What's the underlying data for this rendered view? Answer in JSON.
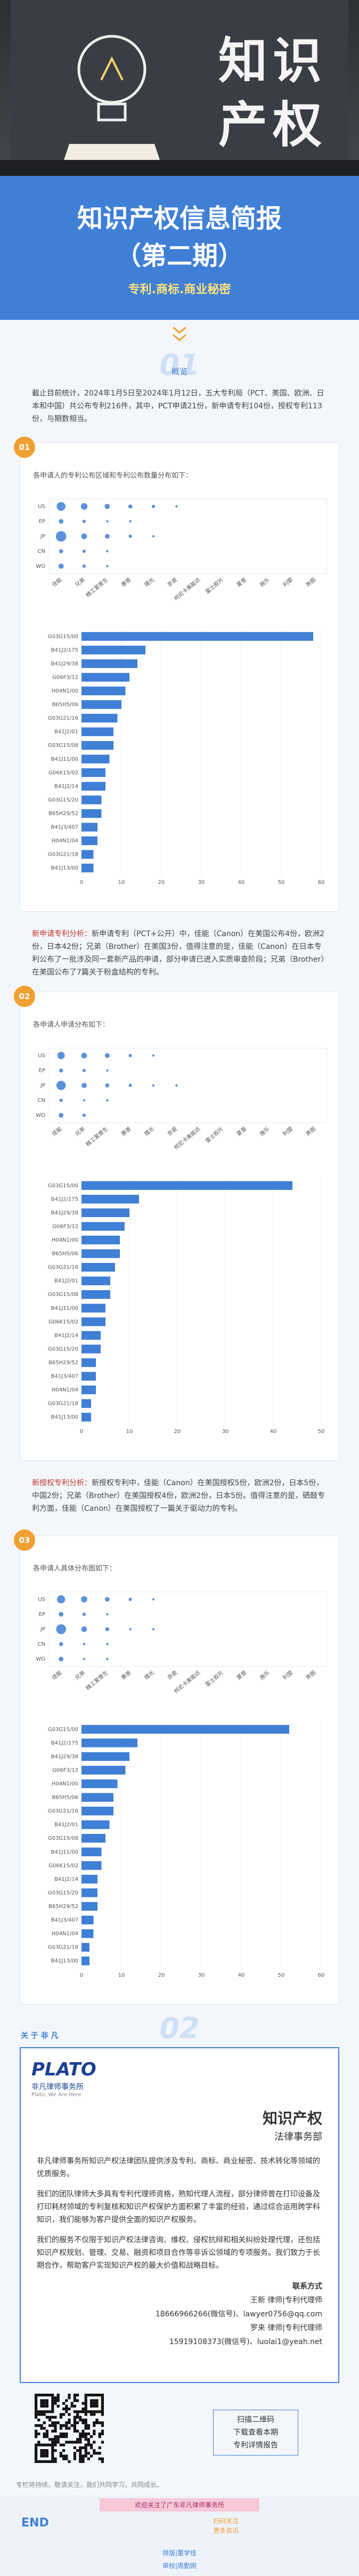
{
  "header": {
    "title_line1": "知识",
    "title_line2": "产权"
  },
  "banner": {
    "title": "知识产权信息简报",
    "issue": "（第二期）",
    "subtitle": "专利.商标.商业秘密"
  },
  "section1": {
    "number": "01",
    "label": "概览"
  },
  "intro": "截止目前统计，2024年1月5日至2024年1月12日，五大专利局（PCT、美国、欧洲、日本和中国）共公布专利216件，其中，PCT申请21份，新申请专利104份，授权专利113份，与期数相当。",
  "cards": [
    {
      "badge": "01",
      "caption": "各申请人的专利公布区域和专利公布数量分布如下："
    },
    {
      "badge": "02",
      "caption": "各申请人申请分布如下："
    },
    {
      "badge": "03",
      "caption": "各申请人具体分布图如下："
    }
  ],
  "para_new": {
    "lead": "新申请专利分析：",
    "text": "新申请专利（PCT+公开）中，佳能（Canon）在美国公布4份，欧洲2份，日本42份；兄弟（Brother）在美国3份，值得注意的是，佳能（Canon）在日本专利公布了一批涉及同一套新产品的申请，部分申请已进入实质审查阶段；兄弟（Brother）在美国公布了7篇关于粉盒结构的专利。"
  },
  "para_grant": {
    "lead": "新授权专利分析：",
    "text": "新授权专利中，佳能（Canon）在美国授权5份，欧洲2份，日本5份，中国2份；兄弟（Brother）在美国授权4份，欧洲2份，日本5份。值得注意的是，硒鼓专利方面，佳能（Canon）在美国授权了一篇关于驱动力的专利。"
  },
  "section2": {
    "number": "02"
  },
  "about": {
    "heading": "关 于 非 凡",
    "logo": "PLATO",
    "firm": "非凡律师事务所",
    "slogan": "Plato, We Are Here",
    "title": "知识产权",
    "dept": "法律事务部",
    "p1": "非凡律师事务所知识产权法律团队提供涉及专利、商标、商业秘密、技术转化等领域的优质服务。",
    "p2": "我们的团队律师大多具有专利代理师资格，熟知代理人流程，部分律师曾在打印设备及打印耗材领域的专利复核和知识产权保护方面积累了丰富的经验，通过综合运用跨学科知识，我们能够为客户提供全面的知识产权服务。",
    "p3": "我们的服务不仅限于知识产权法律咨询、维权、侵权抗辩和相关纠纷处理代理，还包括知识产权规划、管理、交易、融资和项目合作等非诉讼领域的专项服务。我们致力于长期合作，帮助客户实现知识产权的最大价值和战略目标。",
    "contact_title": "联系方式",
    "c1_name": "王新 律师|专利代理师",
    "c1_info": "18666966266(微信号)、lawyer0756@qq.com",
    "c2_name": "罗来 律师|专利代理师",
    "c2_info": "15919108373(微信号)、luolai1@yeah.net"
  },
  "qr": {
    "line1": "扫描二维码",
    "line2": "下载查看本期",
    "line3": "专利详情报告"
  },
  "footer": {
    "note": "专栏将持续，敬请关注，我们共同学习，共同成长。",
    "banner": "欢迎关注了广东非凡律师事务所",
    "end": "END",
    "follow1": "扫码关注",
    "follow2": "更多资讯",
    "credit1": "排版|董学佳",
    "credit2": "审校|周勤刚"
  },
  "chart_data": [
    {
      "type": "bubble",
      "categories": [
        "佳能",
        "兄弟",
        "精工爱普生",
        "惠普",
        "理光",
        "京瓷",
        "柯尼卡美能达",
        "富士胶片",
        "夏普",
        "施乐",
        "利盟",
        "奔图"
      ],
      "series": [
        {
          "name": "US",
          "color": "#3f7fd6",
          "values": [
            14,
            8,
            5,
            3,
            2,
            1,
            null,
            null,
            null,
            null,
            null,
            null
          ]
        },
        {
          "name": "EP",
          "color": "#3f7fd6",
          "values": [
            4,
            2,
            1,
            1,
            null,
            null,
            null,
            null,
            null,
            null,
            null,
            null
          ]
        },
        {
          "name": "JP",
          "color": "#3f7fd6",
          "values": [
            20,
            6,
            4,
            2,
            1,
            null,
            null,
            null,
            null,
            null,
            null,
            null
          ]
        },
        {
          "name": "CN",
          "color": "#3f7fd6",
          "values": [
            3,
            2,
            1,
            null,
            null,
            null,
            null,
            null,
            null,
            null,
            null,
            null
          ]
        },
        {
          "name": "WO",
          "color": "#3f7fd6",
          "values": [
            5,
            2,
            1,
            null,
            null,
            null,
            null,
            null,
            null,
            null,
            null,
            null
          ]
        }
      ]
    },
    {
      "type": "bar",
      "orientation": "horizontal",
      "color": "#3f7fd6",
      "grid": true,
      "categories": [
        "G03G15/00",
        "B41J2/175",
        "B41J29/38",
        "G06F3/12",
        "H04N1/00",
        "B65H5/06",
        "G03G21/16",
        "B41J2/01",
        "G03G15/08",
        "B41J11/00",
        "G06K15/02",
        "B41J2/14",
        "G03G15/20",
        "B65H29/52",
        "B41J3/407",
        "H04N1/04",
        "G03G21/18",
        "B41J13/00"
      ],
      "values": [
        58,
        16,
        14,
        12,
        11,
        10,
        9,
        8,
        8,
        7,
        6,
        6,
        5,
        5,
        4,
        4,
        3,
        3
      ],
      "xlim": [
        0,
        60
      ],
      "xticks": [
        0,
        10,
        20,
        30,
        40,
        50,
        60
      ]
    },
    {
      "type": "bubble",
      "categories": [
        "佳能",
        "兄弟",
        "精工爱普生",
        "惠普",
        "理光",
        "京瓷",
        "柯尼卡美能达",
        "富士胶片",
        "夏普",
        "施乐",
        "利盟",
        "奔图"
      ],
      "series": [
        {
          "name": "US",
          "color": "#3f7fd6",
          "values": [
            10,
            6,
            4,
            2,
            1,
            null,
            null,
            null,
            null,
            null,
            null,
            null
          ]
        },
        {
          "name": "EP",
          "color": "#3f7fd6",
          "values": [
            3,
            2,
            1,
            null,
            null,
            null,
            null,
            null,
            null,
            null,
            null,
            null
          ]
        },
        {
          "name": "JP",
          "color": "#3f7fd6",
          "values": [
            16,
            5,
            3,
            2,
            1,
            1,
            null,
            null,
            null,
            null,
            null,
            null
          ]
        },
        {
          "name": "CN",
          "color": "#3f7fd6",
          "values": [
            2,
            1,
            1,
            null,
            null,
            null,
            null,
            null,
            null,
            null,
            null,
            null
          ]
        },
        {
          "name": "WO",
          "color": "#3f7fd6",
          "values": [
            4,
            2,
            null,
            null,
            null,
            null,
            null,
            null,
            null,
            null,
            null,
            null
          ]
        }
      ]
    },
    {
      "type": "bar",
      "orientation": "horizontal",
      "color": "#3f7fd6",
      "grid": true,
      "categories": [
        "G03G15/00",
        "B41J2/175",
        "B41J29/38",
        "G06F3/12",
        "H04N1/00",
        "B65H5/06",
        "G03G21/16",
        "B41J2/01",
        "G03G15/08",
        "B41J11/00",
        "G06K15/02",
        "B41J2/14",
        "G03G15/20",
        "B65H29/52",
        "B41J3/407",
        "H04N1/04",
        "G03G21/18",
        "B41J13/00"
      ],
      "values": [
        44,
        12,
        10,
        9,
        8,
        8,
        7,
        6,
        6,
        5,
        5,
        4,
        4,
        3,
        3,
        3,
        2,
        2
      ],
      "xlim": [
        0,
        50
      ],
      "xticks": [
        0,
        10,
        20,
        30,
        40,
        50
      ]
    },
    {
      "type": "bubble",
      "categories": [
        "佳能",
        "兄弟",
        "精工爱普生",
        "惠普",
        "理光",
        "京瓷",
        "柯尼卡美能达",
        "富士胶片",
        "夏普",
        "施乐",
        "利盟",
        "奔图"
      ],
      "series": [
        {
          "name": "US",
          "color": "#3f7fd6",
          "values": [
            12,
            7,
            4,
            2,
            1,
            null,
            null,
            null,
            null,
            null,
            null,
            null
          ]
        },
        {
          "name": "EP",
          "color": "#3f7fd6",
          "values": [
            4,
            2,
            1,
            null,
            null,
            null,
            null,
            null,
            null,
            null,
            null,
            null
          ]
        },
        {
          "name": "JP",
          "color": "#3f7fd6",
          "values": [
            18,
            6,
            3,
            1,
            1,
            null,
            null,
            null,
            null,
            null,
            null,
            null
          ]
        },
        {
          "name": "CN",
          "color": "#3f7fd6",
          "values": [
            3,
            1,
            1,
            null,
            null,
            null,
            null,
            null,
            null,
            null,
            null,
            null
          ]
        },
        {
          "name": "WO",
          "color": "#3f7fd6",
          "values": [
            4,
            1,
            1,
            null,
            null,
            null,
            null,
            null,
            null,
            null,
            null,
            null
          ]
        }
      ]
    },
    {
      "type": "bar",
      "orientation": "horizontal",
      "color": "#3f7fd6",
      "grid": true,
      "categories": [
        "G03G15/00",
        "B41J2/175",
        "B41J29/38",
        "G06F3/12",
        "H04N1/00",
        "B65H5/06",
        "G03G21/16",
        "B41J2/01",
        "G03G15/08",
        "B41J11/00",
        "G06K15/02",
        "B41J2/14",
        "G03G15/20",
        "B65H29/52",
        "B41J3/407",
        "H04N1/04",
        "G03G21/18",
        "B41J13/00"
      ],
      "values": [
        52,
        14,
        12,
        11,
        9,
        8,
        8,
        7,
        6,
        5,
        5,
        4,
        4,
        4,
        3,
        3,
        2,
        2
      ],
      "xlim": [
        0,
        60
      ],
      "xticks": [
        0,
        10,
        20,
        30,
        40,
        50,
        60
      ]
    }
  ]
}
